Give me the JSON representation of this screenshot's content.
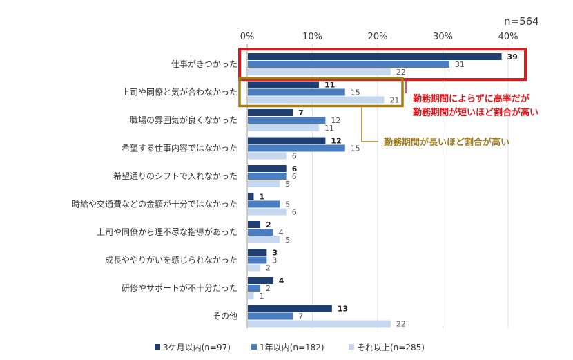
{
  "chart_data": {
    "type": "bar",
    "orientation": "horizontal",
    "sample_size_label": "n=564",
    "x_ticks": [
      "0%",
      "10%",
      "20%",
      "30%",
      "40%"
    ],
    "xlim": [
      0,
      40
    ],
    "grid": true,
    "categories": [
      "仕事がきつかった",
      "上司や同僚と気が合わなかった",
      "職場の雰囲気が良くなかった",
      "希望する仕事内容ではなかった",
      "希望通りのシフトで入れなかった",
      "時給や交通費などの金額が十分ではなかった",
      "上司や同僚から理不尽な指導があった",
      "成長ややりがいを感じられなかった",
      "研修やサポートが不十分だった",
      "その他"
    ],
    "series": [
      {
        "name": "3ケ月以内(n=97)",
        "color": "#1f3f73",
        "values": [
          39,
          11,
          7,
          12,
          6,
          1,
          2,
          3,
          4,
          13
        ]
      },
      {
        "name": "1年以内(n=182)",
        "color": "#4a7cc0",
        "values": [
          31,
          15,
          12,
          15,
          6,
          5,
          4,
          3,
          2,
          7
        ]
      },
      {
        "name": "それ以上(n=285)",
        "color": "#c6d8ef",
        "values": [
          22,
          21,
          11,
          6,
          5,
          6,
          5,
          2,
          1,
          22
        ]
      }
    ],
    "legend_position": "bottom",
    "annotations": [
      {
        "lines": [
          "勤務期間によらずに高率だが",
          "勤務期間が短いほど割合が高い"
        ],
        "color": "#e0191d",
        "target_category": "仕事がきつかった"
      },
      {
        "lines": [
          "勤務期間が長いほど割合が高い"
        ],
        "color": "#a27d1e",
        "target_category": "上司や同僚と気が合わなかった"
      }
    ]
  }
}
